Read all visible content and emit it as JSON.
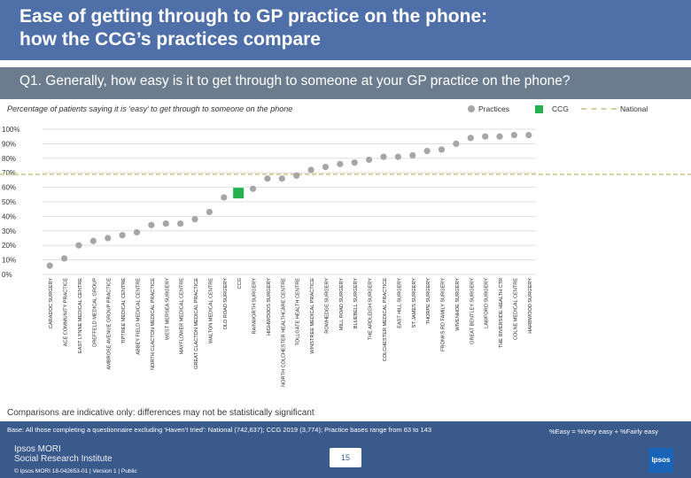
{
  "header": {
    "title": "Ease of getting through to GP practice on the phone:\nhow the CCG’s practices compare"
  },
  "question": "Q1. Generally, how easy is it to get through to someone at your GP practice on the phone?",
  "subtitle": "Percentage of patients saying it is ‘easy’ to get through to someone on the phone",
  "legend": {
    "practices": "Practices",
    "ccg": "CCG",
    "national": "National"
  },
  "colors": {
    "practice": "#a6a6a6",
    "ccg": "#22b14c",
    "national": "#d9cfa0",
    "header": "#4f6fa8",
    "question": "#6b7c8e",
    "footer": "#3a5a8c"
  },
  "caveat": "Comparisons are indicative only: differences may not be statistically significant",
  "footer": {
    "base": "Base: All those completing a questionnaire excluding ‘Haven’t tried’: National (742,637); CCG 2019 (3,774); Practice bases range from 63 to 143",
    "formula": "%Easy = %Very easy + %Fairly easy",
    "brand": "Ipsos MORI\nSocial Research Institute",
    "copyright": "© Ipsos MORI     18-042653-01 | Version 1 | Public",
    "page": "15",
    "logo": "Ipsos"
  },
  "chart_data": {
    "type": "scatter",
    "title": "Percentage of patients saying it is ‘easy’ to get through to someone on the phone",
    "ylabel": "",
    "ylim": [
      0,
      100
    ],
    "ytick_labels": [
      "0%",
      "10%",
      "20%",
      "30%",
      "40%",
      "50%",
      "60%",
      "70%",
      "80%",
      "90%",
      "100%"
    ],
    "national": 69,
    "ccg_index": 13,
    "categories": [
      "CARADOC SURGERY",
      "ACE COMMUNITY PRACTICE",
      "EAST LYNNE MEDICAL CENTRE",
      "DREFFELD MEDICAL GROUP",
      "AMBROSE AVENUE GROUP PRACTICE",
      "TIPTREE MEDICAL CENTRE",
      "ABBEY FIELD MEDICAL CENTRE",
      "NORTH CLACTON MEDICAL PRACTICE",
      "WEST MERSEA SURGERY",
      "MAYFLOWER MEDICAL CENTRE",
      "GREAT CLACTON MEDICAL PRACTICE",
      "WALTON MEDICAL CENTRE",
      "OLD ROAD SURGERY",
      "CCG",
      "RAINWORTH SURGERY",
      "HIGHWOODS SURGERY",
      "NORTH COLCHESTER HEALTHCARE CENTRE",
      "TOLLGATE HEALTH CENTRE",
      "WINSTREE MEDICAL PRACTICE",
      "ROWHEDGE SURGERY",
      "MILL ROAD SURGERY",
      "BLUEBELL SURGERY",
      "THE ARDLEIGH SURGERY",
      "COLCHESTER MEDICAL PRACTICE",
      "EAST HILL SURGERY",
      "ST JAMES SURGERY",
      "THORPE SURGERY",
      "FRONKS RD FAMILY SURGERY",
      "WIVENHOE SURGERY",
      "GREAT BENTLEY SURGERY",
      "LAWFORD SURGERY",
      "THE RIVERSIDE HEALTH CTR",
      "COLNE MEDICAL CENTRE",
      "HARBWOOD SURGERY"
    ],
    "values": [
      6,
      11,
      20,
      23,
      25,
      27,
      29,
      34,
      35,
      35,
      38,
      43,
      53,
      56,
      59,
      66,
      66,
      68,
      72,
      74,
      76,
      77,
      79,
      81,
      81,
      82,
      85,
      86,
      90,
      94,
      95,
      95,
      96,
      96
    ]
  }
}
